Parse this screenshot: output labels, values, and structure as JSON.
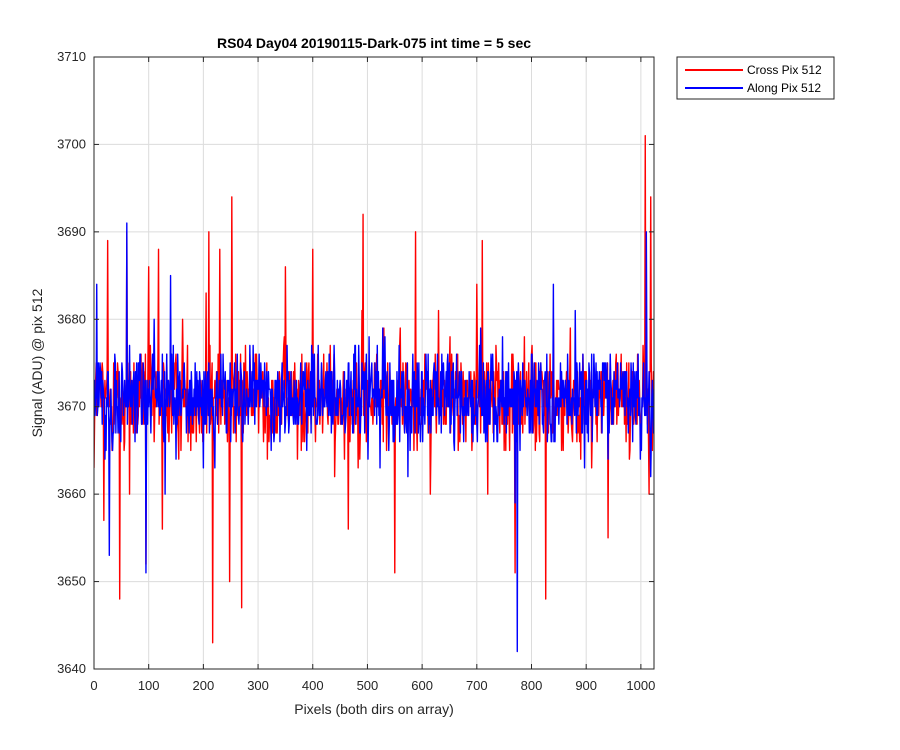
{
  "chart_data": {
    "type": "line",
    "title": "RS04 Day04 20190115-Dark-075 int time = 5 sec",
    "xlabel": "Pixels (both dirs on array)",
    "ylabel": "Signal (ADU) @ pix 512",
    "xlim": [
      0,
      1024
    ],
    "ylim": [
      3640,
      3710
    ],
    "xticks": [
      0,
      100,
      200,
      300,
      400,
      500,
      600,
      700,
      800,
      900,
      1000
    ],
    "yticks": [
      3640,
      3650,
      3660,
      3670,
      3680,
      3690,
      3700,
      3710
    ],
    "grid": true,
    "legend_position": "outside-top-right",
    "series": [
      {
        "name": "Cross Pix 512",
        "color": "#ff0000",
        "mean": 3671,
        "points": [
          [
            0,
            3663
          ],
          [
            8,
            3672
          ],
          [
            18,
            3657
          ],
          [
            25,
            3689
          ],
          [
            30,
            3672
          ],
          [
            36,
            3675
          ],
          [
            47,
            3648
          ],
          [
            55,
            3665
          ],
          [
            60,
            3690
          ],
          [
            65,
            3660
          ],
          [
            80,
            3668
          ],
          [
            95,
            3652
          ],
          [
            100,
            3686
          ],
          [
            110,
            3666
          ],
          [
            118,
            3688
          ],
          [
            125,
            3656
          ],
          [
            145,
            3674
          ],
          [
            162,
            3680
          ],
          [
            175,
            3671
          ],
          [
            205,
            3683
          ],
          [
            210,
            3690
          ],
          [
            217,
            3643
          ],
          [
            230,
            3688
          ],
          [
            240,
            3670
          ],
          [
            248,
            3650
          ],
          [
            252,
            3694
          ],
          [
            260,
            3666
          ],
          [
            270,
            3647
          ],
          [
            285,
            3676
          ],
          [
            300,
            3672
          ],
          [
            320,
            3666
          ],
          [
            350,
            3686
          ],
          [
            372,
            3664
          ],
          [
            400,
            3688
          ],
          [
            420,
            3676
          ],
          [
            440,
            3662
          ],
          [
            465,
            3656
          ],
          [
            490,
            3681
          ],
          [
            492,
            3692
          ],
          [
            510,
            3668
          ],
          [
            530,
            3679
          ],
          [
            550,
            3651
          ],
          [
            560,
            3679
          ],
          [
            588,
            3690
          ],
          [
            600,
            3668
          ],
          [
            615,
            3660
          ],
          [
            630,
            3681
          ],
          [
            650,
            3675
          ],
          [
            680,
            3666
          ],
          [
            700,
            3684
          ],
          [
            710,
            3689
          ],
          [
            720,
            3660
          ],
          [
            740,
            3675
          ],
          [
            760,
            3665
          ],
          [
            770,
            3651
          ],
          [
            785,
            3671
          ],
          [
            800,
            3676
          ],
          [
            815,
            3666
          ],
          [
            826,
            3648
          ],
          [
            840,
            3680
          ],
          [
            855,
            3665
          ],
          [
            880,
            3671
          ],
          [
            900,
            3674
          ],
          [
            920,
            3666
          ],
          [
            940,
            3655
          ],
          [
            960,
            3672
          ],
          [
            980,
            3665
          ],
          [
            1000,
            3668
          ],
          [
            1008,
            3701
          ],
          [
            1015,
            3660
          ],
          [
            1018,
            3694
          ],
          [
            1024,
            3671
          ]
        ]
      },
      {
        "name": "Along Pix 512",
        "color": "#0000ff",
        "mean": 3671,
        "points": [
          [
            0,
            3670
          ],
          [
            5,
            3684
          ],
          [
            12,
            3674
          ],
          [
            20,
            3664
          ],
          [
            28,
            3653
          ],
          [
            38,
            3676
          ],
          [
            48,
            3668
          ],
          [
            60,
            3691
          ],
          [
            70,
            3668
          ],
          [
            85,
            3676
          ],
          [
            95,
            3651
          ],
          [
            100,
            3670
          ],
          [
            110,
            3680
          ],
          [
            120,
            3669
          ],
          [
            130,
            3660
          ],
          [
            140,
            3685
          ],
          [
            150,
            3664
          ],
          [
            165,
            3675
          ],
          [
            180,
            3668
          ],
          [
            190,
            3673
          ],
          [
            200,
            3663
          ],
          [
            210,
            3675
          ],
          [
            220,
            3666
          ],
          [
            240,
            3674
          ],
          [
            255,
            3672
          ],
          [
            265,
            3668
          ],
          [
            285,
            3677
          ],
          [
            300,
            3672
          ],
          [
            320,
            3672
          ],
          [
            340,
            3666
          ],
          [
            360,
            3674
          ],
          [
            380,
            3668
          ],
          [
            400,
            3676
          ],
          [
            420,
            3670
          ],
          [
            440,
            3674
          ],
          [
            460,
            3668
          ],
          [
            480,
            3672
          ],
          [
            500,
            3670
          ],
          [
            520,
            3674
          ],
          [
            540,
            3668
          ],
          [
            560,
            3672
          ],
          [
            580,
            3669
          ],
          [
            600,
            3674
          ],
          [
            620,
            3669
          ],
          [
            640,
            3673
          ],
          [
            660,
            3670
          ],
          [
            680,
            3673
          ],
          [
            700,
            3668
          ],
          [
            720,
            3674
          ],
          [
            740,
            3670
          ],
          [
            760,
            3672
          ],
          [
            770,
            3659
          ],
          [
            774,
            3641
          ],
          [
            785,
            3670
          ],
          [
            800,
            3676
          ],
          [
            820,
            3668
          ],
          [
            840,
            3684
          ],
          [
            860,
            3670
          ],
          [
            880,
            3681
          ],
          [
            900,
            3668
          ],
          [
            920,
            3674
          ],
          [
            940,
            3664
          ],
          [
            960,
            3672
          ],
          [
            980,
            3672
          ],
          [
            1000,
            3668
          ],
          [
            1010,
            3690
          ],
          [
            1018,
            3662
          ],
          [
            1024,
            3672
          ]
        ]
      }
    ]
  }
}
